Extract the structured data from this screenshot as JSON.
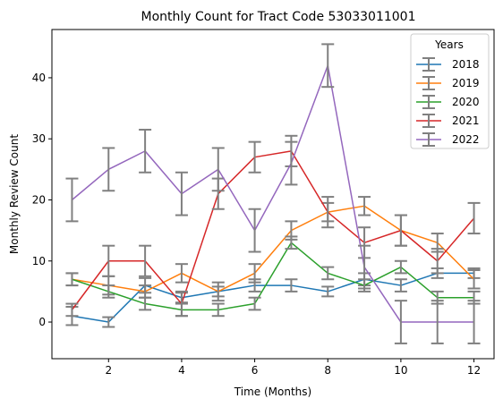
{
  "chart_data": {
    "type": "line",
    "title": "Monthly Count for Tract Code 53033011001",
    "xlabel": "Time (Months)",
    "ylabel": "Monthly Review Count",
    "xlim": [
      0.45,
      12.55
    ],
    "ylim": [
      -6,
      47.9
    ],
    "xticks": [
      2,
      4,
      6,
      8,
      10,
      12
    ],
    "yticks": [
      0,
      10,
      20,
      30,
      40
    ],
    "x": [
      1,
      2,
      3,
      4,
      5,
      6,
      7,
      8,
      9,
      10,
      11,
      12
    ],
    "legend": {
      "title": "Years",
      "placement": "top-right"
    },
    "grid": false,
    "error_bar_color": "#808080",
    "series": [
      {
        "name": "2018",
        "color": "#1f77b4",
        "values": [
          1,
          0,
          6,
          4,
          5,
          6,
          6,
          5,
          7,
          6,
          8,
          8
        ],
        "errors": [
          1.5,
          0.8,
          1.2,
          0.8,
          0.8,
          1,
          1,
          0.8,
          1,
          1,
          0.8,
          0.8
        ]
      },
      {
        "name": "2019",
        "color": "#ff7f0e",
        "values": [
          7,
          6,
          5,
          8,
          5,
          8,
          15,
          18,
          19,
          15,
          13,
          7
        ],
        "errors": [
          1,
          1.5,
          1,
          1.5,
          1.5,
          1.5,
          1.5,
          1.5,
          1.5,
          2.5,
          1.5,
          1.5
        ]
      },
      {
        "name": "2020",
        "color": "#2ca02c",
        "values": [
          7,
          5,
          3,
          2,
          2,
          3,
          13,
          8,
          6,
          9,
          4,
          4
        ],
        "errors": [
          1,
          1,
          1,
          1,
          1,
          1,
          1,
          1,
          1,
          1,
          1,
          1
        ]
      },
      {
        "name": "2021",
        "color": "#d62728",
        "values": [
          2,
          10,
          10,
          3,
          21,
          27,
          28,
          18,
          13,
          15,
          10,
          17
        ],
        "errors": [
          1,
          2.5,
          2.5,
          2,
          2.5,
          2.5,
          2.5,
          2.5,
          2.5,
          2.5,
          2,
          2.5
        ]
      },
      {
        "name": "2022",
        "color": "#9467bd",
        "values": [
          20,
          25,
          28,
          21,
          25,
          15,
          26,
          42,
          9,
          0,
          0,
          0
        ],
        "errors": [
          3.5,
          3.5,
          3.5,
          3.5,
          3.5,
          3.5,
          3.5,
          3.5,
          3.5,
          3.5,
          3.5,
          3.5
        ]
      }
    ]
  }
}
